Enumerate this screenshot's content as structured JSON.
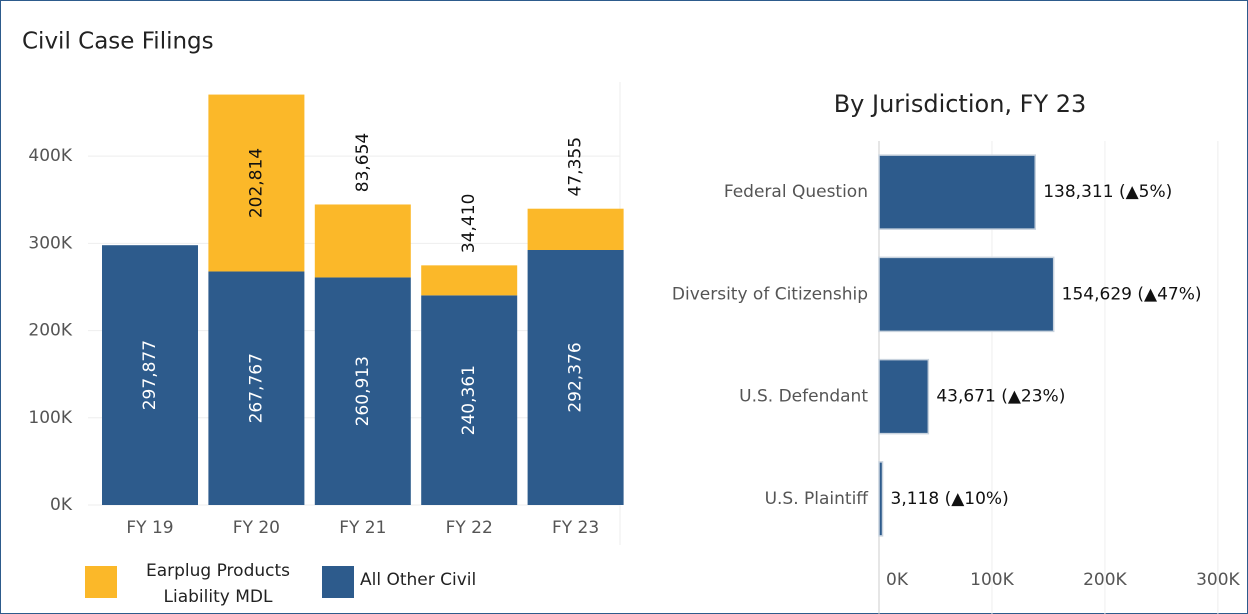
{
  "chart_data": [
    {
      "type": "stacked-bar",
      "title": "Civil Case Filings",
      "categories": [
        "FY 19",
        "FY 20",
        "FY 21",
        "FY 22",
        "FY 23"
      ],
      "series": [
        {
          "name": "All Other Civil",
          "color": "#2d5b8c",
          "values": [
            297877,
            267767,
            260913,
            240361,
            292376
          ]
        },
        {
          "name": "Earplug Products Liability MDL",
          "color": "#fbb829",
          "values": [
            null,
            202814,
            83654,
            34410,
            47355
          ]
        }
      ],
      "ylim": [
        0,
        485000
      ],
      "yticks": [
        {
          "value": 0,
          "label": "0K"
        },
        {
          "value": 100000,
          "label": "100K"
        },
        {
          "value": 200000,
          "label": "200K"
        },
        {
          "value": 300000,
          "label": "300K"
        },
        {
          "value": 400000,
          "label": "400K"
        }
      ],
      "grid": true
    },
    {
      "type": "hbar",
      "title": "By Jurisdiction, FY 23",
      "categories": [
        "Federal Question",
        "Diversity of Citizenship",
        "U.S. Defendant",
        "U.S. Plaintiff"
      ],
      "values": [
        138311,
        154629,
        43671,
        3118
      ],
      "value_labels": [
        "138,311 (▲5%)",
        "154,629 (▲47%)",
        "43,671 (▲23%)",
        "3,118 (▲10%)"
      ],
      "color": "#2d5b8c",
      "xlim": [
        0,
        324000
      ],
      "xticks": [
        {
          "value": 0,
          "label": "0K"
        },
        {
          "value": 100000,
          "label": "100K"
        },
        {
          "value": 200000,
          "label": "200K"
        },
        {
          "value": 300000,
          "label": "300K"
        }
      ],
      "grid": true
    }
  ]
}
